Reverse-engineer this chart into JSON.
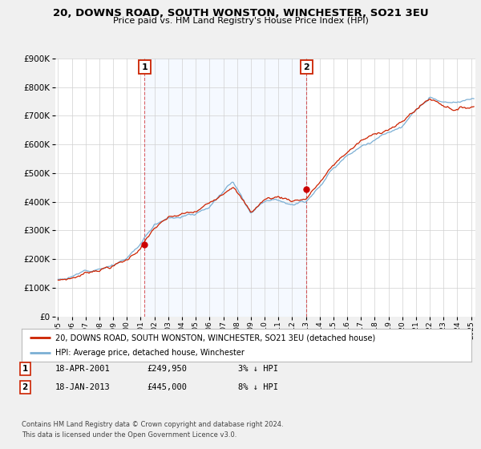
{
  "title": "20, DOWNS ROAD, SOUTH WONSTON, WINCHESTER, SO21 3EU",
  "subtitle": "Price paid vs. HM Land Registry's House Price Index (HPI)",
  "sale1_date": "18-APR-2001",
  "sale1_price": 249950,
  "sale1_label": "1",
  "sale1_year": 2001.29,
  "sale2_date": "18-JAN-2013",
  "sale2_price": 445000,
  "sale2_label": "2",
  "sale2_year": 2013.05,
  "legend_line1": "20, DOWNS ROAD, SOUTH WONSTON, WINCHESTER, SO21 3EU (detached house)",
  "legend_line2": "HPI: Average price, detached house, Winchester",
  "footer1": "Contains HM Land Registry data © Crown copyright and database right 2024.",
  "footer2": "This data is licensed under the Open Government Licence v3.0.",
  "hpi_color": "#7bafd4",
  "price_color": "#cc2200",
  "marker_color": "#cc0000",
  "shade_color": "#ddeeff",
  "background_color": "#f0f0f0",
  "plot_bg_color": "#ffffff",
  "ylim": [
    0,
    900000
  ],
  "xlim_start": 1994.8,
  "xlim_end": 2025.3
}
